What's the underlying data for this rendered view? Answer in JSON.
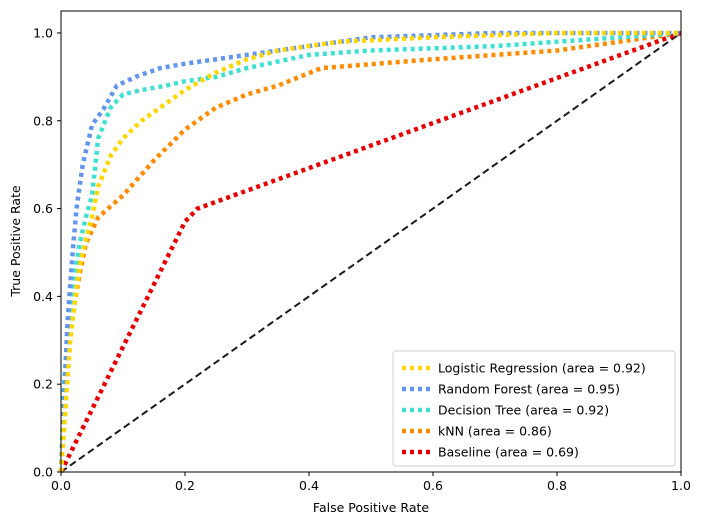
{
  "chart_data": {
    "type": "line",
    "title": "",
    "xlabel": "False Positive Rate",
    "ylabel": "True Positive Rate",
    "xlim": [
      0.0,
      1.0
    ],
    "ylim": [
      0.0,
      1.05
    ],
    "xticks": [
      "0.0",
      "0.2",
      "0.4",
      "0.6",
      "0.8",
      "1.0"
    ],
    "yticks": [
      "0.0",
      "0.2",
      "0.4",
      "0.6",
      "0.8",
      "1.0"
    ],
    "grid": false,
    "legend_position": "lower-right",
    "diagonal_reference": {
      "x": [
        0,
        1
      ],
      "y": [
        0,
        1
      ],
      "color": "#1a1a1a",
      "style": "dashed"
    },
    "series": [
      {
        "name": "Logistic Regression (area = 0.92)",
        "color": "#FFD700",
        "x": [
          0,
          0.005,
          0.01,
          0.015,
          0.02,
          0.025,
          0.03,
          0.04,
          0.05,
          0.06,
          0.08,
          0.1,
          0.13,
          0.16,
          0.2,
          0.25,
          0.3,
          0.35,
          0.45,
          0.6,
          0.8,
          1.0
        ],
        "y": [
          0,
          0.1,
          0.2,
          0.3,
          0.36,
          0.42,
          0.47,
          0.53,
          0.58,
          0.65,
          0.72,
          0.76,
          0.8,
          0.83,
          0.87,
          0.91,
          0.94,
          0.96,
          0.98,
          0.99,
          1.0,
          1.0
        ]
      },
      {
        "name": "Random Forest (area = 0.95)",
        "color": "#6495ED",
        "x": [
          0,
          0.005,
          0.01,
          0.015,
          0.02,
          0.025,
          0.035,
          0.05,
          0.07,
          0.09,
          0.12,
          0.16,
          0.2,
          0.3,
          0.4,
          0.5,
          0.7,
          1.0
        ],
        "y": [
          0,
          0.15,
          0.33,
          0.43,
          0.52,
          0.6,
          0.7,
          0.79,
          0.83,
          0.88,
          0.9,
          0.92,
          0.93,
          0.95,
          0.97,
          0.99,
          1.0,
          1.0
        ]
      },
      {
        "name": "Decision Tree (area = 0.92)",
        "color": "#40E0D0",
        "x": [
          0,
          0.005,
          0.01,
          0.015,
          0.02,
          0.03,
          0.04,
          0.05,
          0.06,
          0.08,
          0.1,
          0.13,
          0.17,
          0.2,
          0.25,
          0.3,
          0.4,
          0.5,
          0.7,
          1.0
        ],
        "y": [
          0,
          0.2,
          0.3,
          0.37,
          0.43,
          0.52,
          0.58,
          0.63,
          0.76,
          0.83,
          0.86,
          0.87,
          0.88,
          0.89,
          0.9,
          0.92,
          0.95,
          0.96,
          0.97,
          1.0
        ]
      },
      {
        "name": "kNN (area = 0.86)",
        "color": "#FF8C00",
        "x": [
          0,
          0.01,
          0.02,
          0.03,
          0.04,
          0.06,
          0.1,
          0.15,
          0.2,
          0.25,
          0.3,
          0.35,
          0.42,
          0.6,
          0.8,
          1.0
        ],
        "y": [
          0,
          0.25,
          0.37,
          0.45,
          0.52,
          0.58,
          0.63,
          0.71,
          0.78,
          0.83,
          0.86,
          0.88,
          0.92,
          0.94,
          0.96,
          1.0
        ]
      },
      {
        "name": "Baseline (area = 0.69)",
        "color": "#E50000",
        "x": [
          0,
          0.2,
          0.22,
          1.0
        ],
        "y": [
          0,
          0.57,
          0.6,
          1.0
        ]
      }
    ]
  }
}
